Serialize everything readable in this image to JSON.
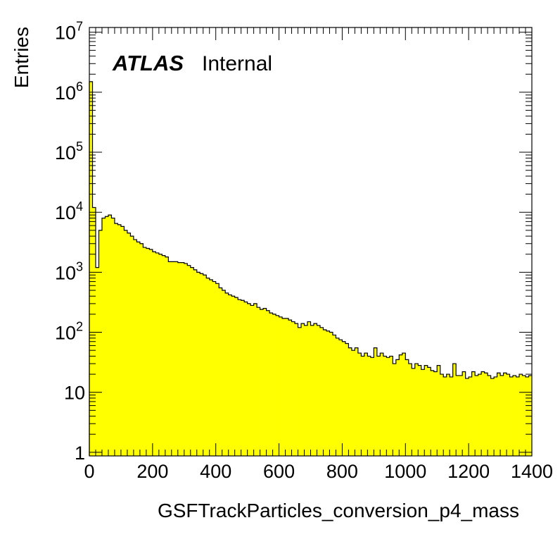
{
  "chart_data": {
    "type": "bar",
    "style": "histogram",
    "xlabel": "GSFTrackParticles_conversion_p4_mass",
    "ylabel": "Entries",
    "label_bold": "ATLAS",
    "label_normal": "Internal",
    "xlim": [
      0,
      1400
    ],
    "ylim": [
      0.87,
      12000000
    ],
    "yscale": "log",
    "grid": false,
    "fill_color": "#ffff00",
    "line_color": "#000000",
    "bin_width": 10,
    "x_ticks": [
      "0",
      "200",
      "400",
      "600",
      "800",
      "1000",
      "1200",
      "1400"
    ],
    "y_ticks": [
      {
        "value": 1,
        "base": "1",
        "exp": ""
      },
      {
        "value": 10,
        "base": "10",
        "exp": ""
      },
      {
        "value": 100,
        "base": "10",
        "exp": "2"
      },
      {
        "value": 1000,
        "base": "10",
        "exp": "3"
      },
      {
        "value": 10000,
        "base": "10",
        "exp": "4"
      },
      {
        "value": 100000,
        "base": "10",
        "exp": "5"
      },
      {
        "value": 1000000,
        "base": "10",
        "exp": "6"
      },
      {
        "value": 10000000,
        "base": "10",
        "exp": "7"
      }
    ],
    "values": [
      1500000,
      12000,
      1200,
      5000,
      8000,
      8500,
      9000,
      8000,
      6500,
      6200,
      5800,
      5000,
      4500,
      4000,
      3500,
      3200,
      3000,
      2600,
      2500,
      2400,
      2200,
      2100,
      2000,
      1900,
      1800,
      1500,
      1500,
      1500,
      1450,
      1450,
      1400,
      1300,
      1200,
      1100,
      1000,
      950,
      900,
      800,
      750,
      700,
      650,
      550,
      500,
      450,
      420,
      400,
      380,
      350,
      340,
      320,
      300,
      280,
      300,
      260,
      240,
      250,
      230,
      210,
      200,
      190,
      180,
      170,
      170,
      160,
      150,
      140,
      120,
      140,
      130,
      150,
      130,
      140,
      130,
      120,
      110,
      105,
      100,
      90,
      80,
      75,
      70,
      65,
      55,
      50,
      55,
      45,
      40,
      45,
      40,
      38,
      55,
      40,
      45,
      40,
      38,
      40,
      30,
      35,
      42,
      45,
      35,
      30,
      25,
      30,
      28,
      24,
      28,
      26,
      23,
      22,
      28,
      20,
      18,
      20,
      18,
      30,
      19,
      19,
      22,
      17,
      18,
      22,
      19,
      20,
      22,
      21,
      19,
      17,
      18,
      21,
      19,
      21,
      20,
      18,
      19,
      18,
      20,
      19,
      18,
      19
    ]
  }
}
